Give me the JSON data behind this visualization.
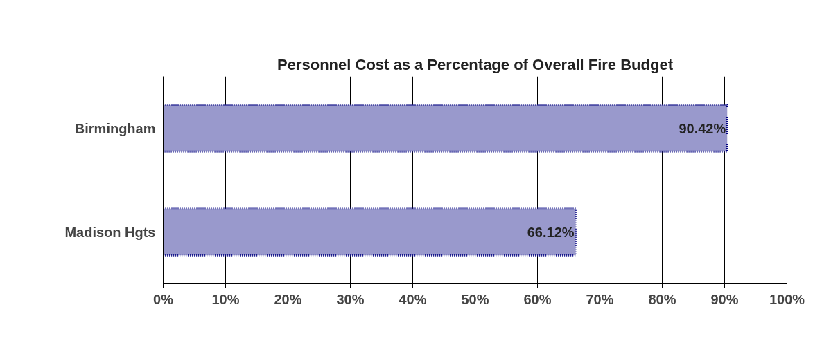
{
  "chart_data": {
    "type": "bar",
    "orientation": "horizontal",
    "title": "Personnel Cost as a Percentage of Overall Fire Budget",
    "categories": [
      "Birmingham",
      "Madison Hgts"
    ],
    "values": [
      90.42,
      66.12
    ],
    "value_labels": [
      "90.42%",
      "66.12%"
    ],
    "color": "#9999cc",
    "xlim": [
      0,
      100
    ],
    "xticks": [
      {
        "value": 0,
        "label": "0%"
      },
      {
        "value": 10,
        "label": "10%"
      },
      {
        "value": 20,
        "label": "20%"
      },
      {
        "value": 30,
        "label": "30%"
      },
      {
        "value": 40,
        "label": "40%"
      },
      {
        "value": 50,
        "label": "50%"
      },
      {
        "value": 60,
        "label": "60%"
      },
      {
        "value": 70,
        "label": "70%"
      },
      {
        "value": 80,
        "label": "80%"
      },
      {
        "value": 90,
        "label": "90%"
      },
      {
        "value": 100,
        "label": "100%"
      }
    ],
    "grid": "x"
  }
}
